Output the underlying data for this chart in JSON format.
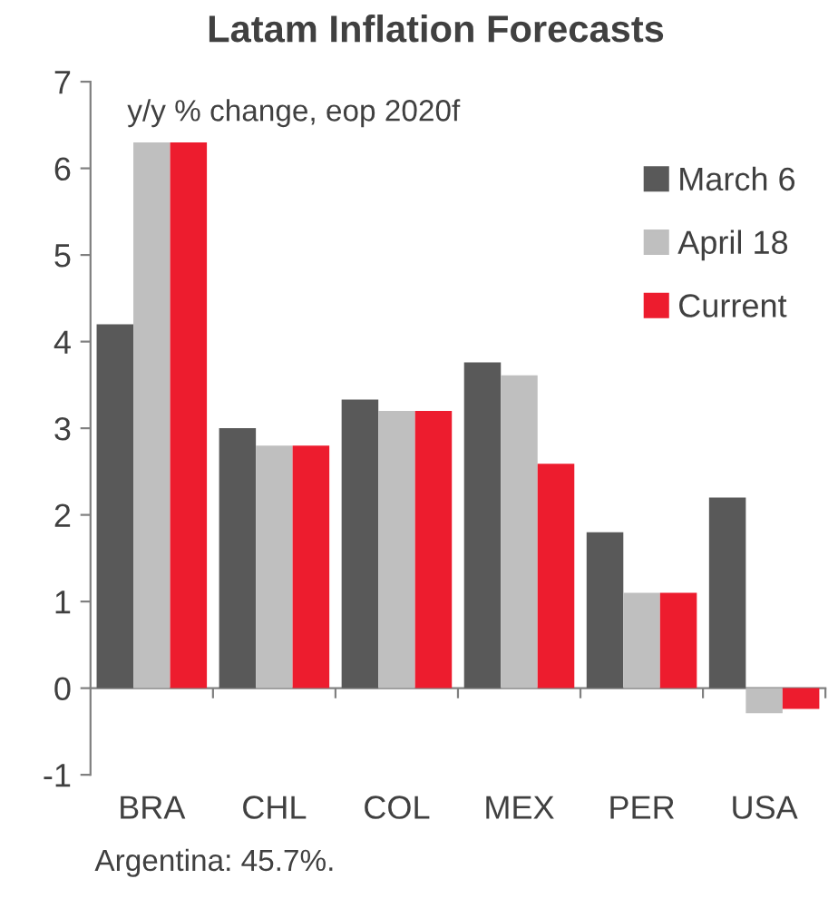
{
  "chart_data": {
    "type": "bar",
    "title": "Latam Inflation Forecasts",
    "categories": [
      "BRA",
      "CHL",
      "COL",
      "MEX",
      "PER",
      "USA"
    ],
    "series": [
      {
        "name": "March 6",
        "color": "#595959",
        "values": [
          4.2,
          3.0,
          3.33,
          3.76,
          1.8,
          2.2
        ]
      },
      {
        "name": "April 18",
        "color": "#bfbfbf",
        "values": [
          6.3,
          2.8,
          3.2,
          3.61,
          1.1,
          -0.29
        ]
      },
      {
        "name": "Current",
        "color": "#ed1c2e",
        "values": [
          6.3,
          2.8,
          3.2,
          2.59,
          1.1,
          -0.24
        ]
      }
    ],
    "ylim": [
      -1,
      7
    ],
    "yticks": [
      -1,
      0,
      1,
      2,
      3,
      4,
      5,
      6,
      7
    ],
    "legend": "top right",
    "annotations": [
      "y/y % change, eop 2020f",
      "Argentina: 45.7%."
    ]
  }
}
